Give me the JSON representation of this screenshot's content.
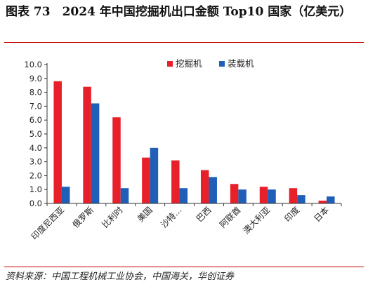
{
  "header": {
    "title": "图表 73　2024 年中国挖掘机出口金额 Top10 国家（亿美元）"
  },
  "footer": {
    "source": "资料来源：中国工程机械工业协会，中国海关，华创证券"
  },
  "chart_data": {
    "type": "bar",
    "categories": [
      "印度尼西亚",
      "俄罗斯",
      "比利时",
      "美国",
      "沙特…",
      "巴西",
      "阿联酋",
      "澳大利亚",
      "印度",
      "日本"
    ],
    "series": [
      {
        "name": "挖掘机",
        "color": "#e8202a",
        "values": [
          8.8,
          8.4,
          6.2,
          3.3,
          3.1,
          2.4,
          1.4,
          1.2,
          1.1,
          0.2
        ]
      },
      {
        "name": "装载机",
        "color": "#1f5fb8",
        "values": [
          1.2,
          7.2,
          1.1,
          4.0,
          1.1,
          1.9,
          1.0,
          1.0,
          0.6,
          0.5
        ]
      }
    ],
    "yticks": [
      "0.0",
      "1.0",
      "2.0",
      "3.0",
      "4.0",
      "5.0",
      "6.0",
      "7.0",
      "8.0",
      "9.0",
      "10.0"
    ],
    "ylim": [
      0,
      10
    ],
    "legend_position": "top-center",
    "grid": false
  }
}
